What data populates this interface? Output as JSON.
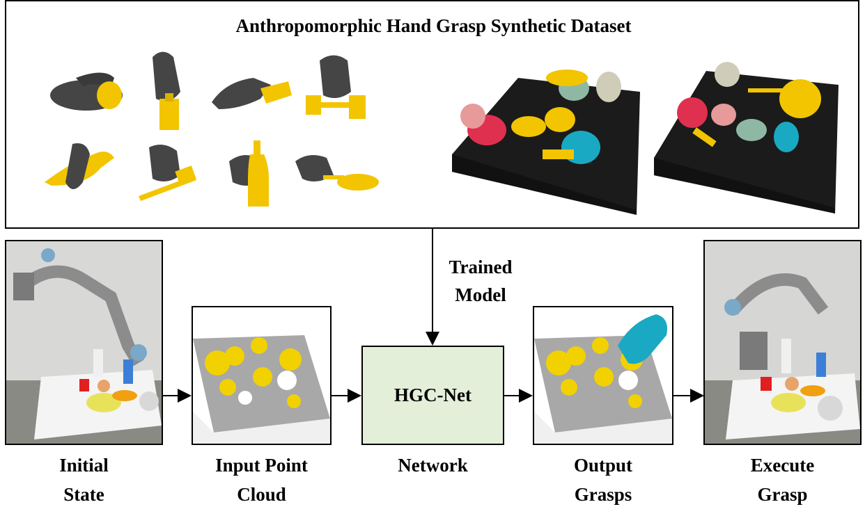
{
  "dataset": {
    "title": "Anthropomorphic Hand Grasp Synthetic Dataset"
  },
  "trained_model_label": [
    "Trained",
    "Model"
  ],
  "network": {
    "name": "HGC-Net"
  },
  "stages": [
    {
      "id": "initial-state",
      "caption": [
        "Initial",
        "State"
      ]
    },
    {
      "id": "input-point-cloud",
      "caption": [
        "Input Point",
        "Cloud"
      ]
    },
    {
      "id": "network",
      "caption": [
        "Network"
      ]
    },
    {
      "id": "output-grasps",
      "caption": [
        "Output",
        "Grasps"
      ]
    },
    {
      "id": "execute-grasp",
      "caption": [
        "Execute",
        "Grasp"
      ]
    }
  ],
  "colors": {
    "object_yellow": "#f2c500",
    "hand_dark": "#454545",
    "table_black": "#1b1b1b",
    "network_fill": "#e3efd9",
    "point_cloud_gray": "#a8a8a8",
    "hand_cyan": "#1aa9c2",
    "hand_red": "#e03050",
    "hand_pink": "#e79a9a",
    "hand_sage": "#8fb8a4",
    "hand_beige": "#cfcdb8"
  }
}
